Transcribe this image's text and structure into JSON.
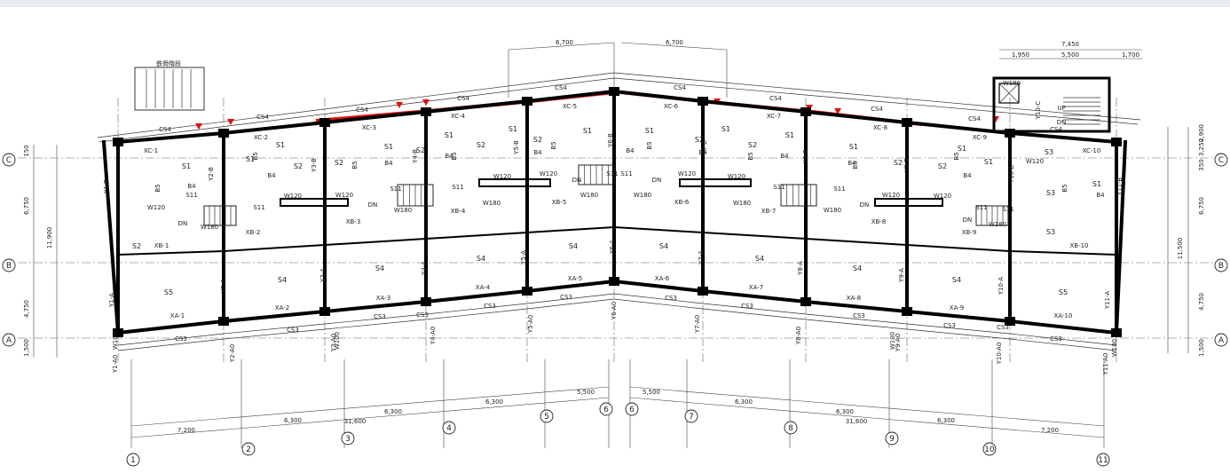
{
  "axis_x_bottom": [
    "1",
    "2",
    "3",
    "4",
    "5",
    "6",
    "6",
    "7",
    "8",
    "9",
    "10",
    "11"
  ],
  "axis_y_left": [
    "C",
    "B",
    "A"
  ],
  "axis_y_right": [
    "C",
    "B",
    "A"
  ],
  "bottom_dims": {
    "spans": [
      "7,200",
      "6,300",
      "6,300",
      "6,300",
      "5,500",
      "5,500",
      "6,300",
      "6,300",
      "6,300",
      "7,200"
    ],
    "totals": [
      "31,600",
      "31,600"
    ]
  },
  "top_dims": {
    "center_left": "6,700",
    "center_right": "6,700",
    "stair_total": "7,450",
    "stair_a": "1,950",
    "stair_b": "5,500",
    "stair_c": "1,700"
  },
  "left_dims": [
    "150",
    "6,750",
    "11,900",
    "4,750",
    "1,500"
  ],
  "right_dims": [
    "2,900",
    "3,250",
    "350",
    "6,750",
    "11,500",
    "4,750",
    "1,500"
  ],
  "note_steel_stair": "鉄骨階段",
  "beams_cs4": [
    "CS4",
    "CS4",
    "CS4",
    "CS4",
    "CS4",
    "CS4",
    "CS4",
    "CS4",
    "CS4",
    "CS4"
  ],
  "beams_xc": [
    "XC-1",
    "XC-2",
    "XC-3",
    "XC-4",
    "XC-5",
    "XC-6",
    "XC-7",
    "XC-8",
    "XC-9",
    "XC-10"
  ],
  "beams_xb": [
    "XB-1",
    "XB-2",
    "XB-3",
    "XB-4",
    "XB-5",
    "XB-6",
    "XB-7",
    "XB-8",
    "XB-9",
    "XB-10"
  ],
  "beams_xa": [
    "XA-1",
    "XA-2",
    "XA-3",
    "XA-4",
    "XA-5",
    "XA-6",
    "XA-7",
    "XA-8",
    "XA-9",
    "XA-10"
  ],
  "beams_cs3": [
    "CS3",
    "CS3",
    "CS3",
    "CS3",
    "CS3",
    "CS3",
    "CS3",
    "CS3",
    "CS3",
    "CS3",
    "CS3",
    "CS3"
  ],
  "col_labels_a0": [
    "Y1-A0",
    "Y2-A0",
    "Y3-A0",
    "Y4-A0",
    "Y5-A0",
    "Y6-A0",
    "Y7-A0",
    "Y8-A0",
    "Y9-A0",
    "Y10-A0",
    "Y11-A0"
  ],
  "col_labels_a": [
    "Y1-A",
    "Y2-A",
    "Y3-A",
    "Y4-A",
    "Y5-A",
    "Y6-A",
    "Y7-A",
    "Y8-A",
    "Y9-A",
    "Y10-A",
    "Y11-A"
  ],
  "col_labels_b": [
    "Y1-B",
    "Y2-B",
    "Y3-B",
    "Y4-B",
    "Y5-B",
    "Y6-B",
    "Y7-B",
    "Y8-B",
    "Y9-B",
    "Y10-B",
    "Y11-B"
  ],
  "col_label_c": "Y10-C",
  "slab_S5": [
    "S5",
    "S5"
  ],
  "slab_S4": [
    "S4",
    "S4",
    "S4",
    "S4",
    "S4",
    "S4",
    "S4",
    "S4",
    "S4",
    "S4"
  ],
  "slab_S1": [
    "S1",
    "S1",
    "S1",
    "S1",
    "S1",
    "S1",
    "S1",
    "S1",
    "S1",
    "S1",
    "S1",
    "S1",
    "S1",
    "S1"
  ],
  "slab_S2": [
    "S2",
    "S2",
    "S2",
    "S2",
    "S2",
    "S2",
    "S2",
    "S2",
    "S2",
    "S2"
  ],
  "slab_S3": [
    "S3",
    "S3",
    "S3"
  ],
  "slab_S11": "S11",
  "slab_B4": "B4",
  "slab_B5": "B5",
  "wall_W120": "W120",
  "wall_W180": "W180",
  "wall_W100": "W100",
  "stair_up": "UP",
  "stair_dn": "DN"
}
